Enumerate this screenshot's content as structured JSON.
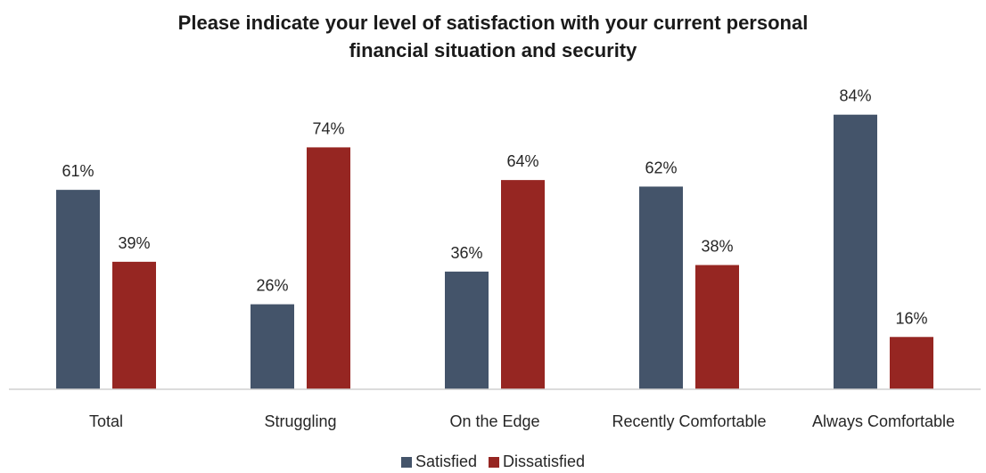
{
  "chart_data": {
    "type": "bar",
    "title": "Please indicate your level of satisfaction with your current personal financial situation and security",
    "title_lines": [
      "Please indicate your level of satisfaction with your current personal",
      "financial situation and security"
    ],
    "categories": [
      "Total",
      "Struggling",
      "On the Edge",
      "Recently Comfortable",
      "Always Comfortable"
    ],
    "series": [
      {
        "name": "Satisfied",
        "color": "#44546A",
        "values": [
          61,
          26,
          36,
          62,
          84
        ],
        "labels": [
          "61%",
          "26%",
          "36%",
          "62%",
          "84%"
        ]
      },
      {
        "name": "Dissatisfied",
        "color": "#962622",
        "values": [
          39,
          74,
          64,
          38,
          16
        ],
        "labels": [
          "39%",
          "74%",
          "64%",
          "38%",
          "16%"
        ]
      }
    ],
    "value_format": "percent",
    "ylim": [
      0,
      100
    ],
    "grid": false,
    "legend_position": "bottom"
  }
}
